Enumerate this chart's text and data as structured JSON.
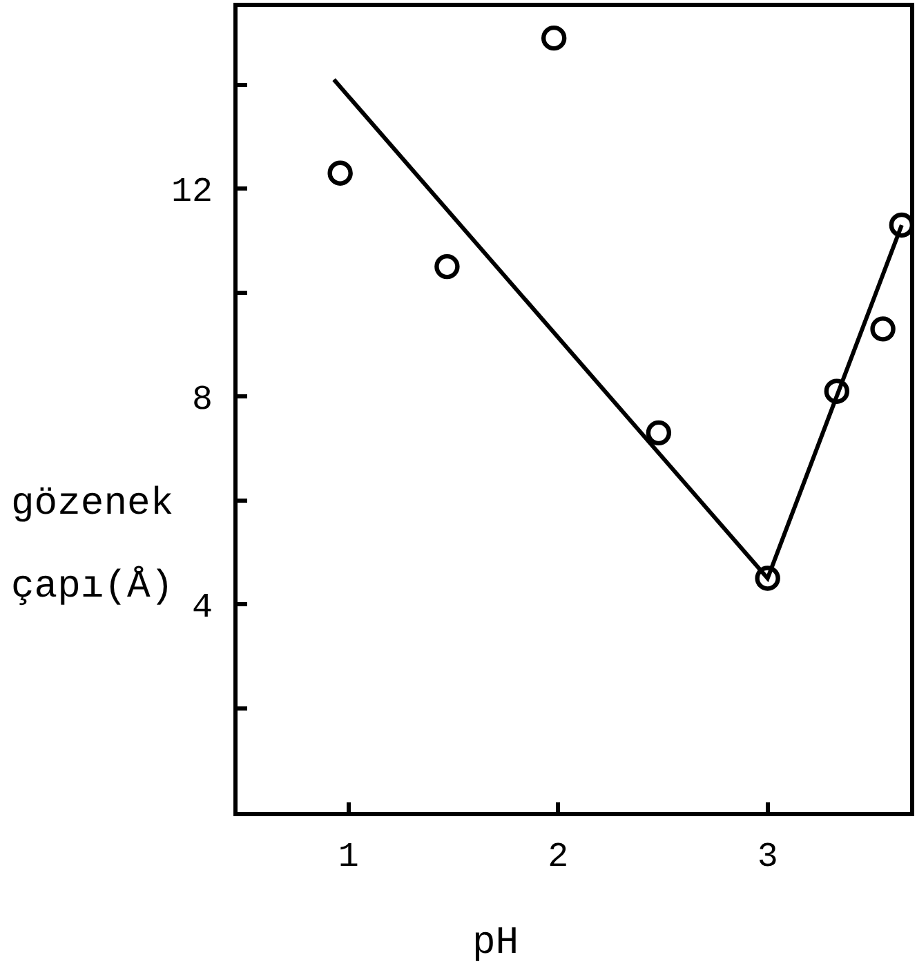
{
  "chart_data": {
    "type": "scatter",
    "xlabel": "pH",
    "ylabel": "gözenek\nçapı(Å)",
    "xlim": [
      0.47,
      3.68
    ],
    "ylim": [
      0,
      15.5
    ],
    "xticks": [
      1,
      2,
      3
    ],
    "yticks": [
      {
        "value": 2,
        "label": null
      },
      4,
      {
        "value": 6,
        "label": null
      },
      8,
      {
        "value": 10,
        "label": null
      },
      12,
      {
        "value": 14,
        "label": null
      }
    ],
    "grid": false,
    "marker": "circle",
    "series": [
      {
        "color": "#000000",
        "x": [
          0.96,
          1.47,
          1.98,
          2.48,
          3.0,
          3.33,
          3.55,
          3.64
        ],
        "values": [
          12.3,
          10.5,
          14.9,
          7.3,
          4.5,
          8.1,
          9.3,
          11.3
        ]
      },
      {
        "type": "line",
        "color": "#000000",
        "marker": "none",
        "line_style": "solid",
        "x": [
          0.93,
          3.0,
          3.64
        ],
        "values": [
          14.1,
          4.5,
          11.3
        ]
      }
    ]
  }
}
